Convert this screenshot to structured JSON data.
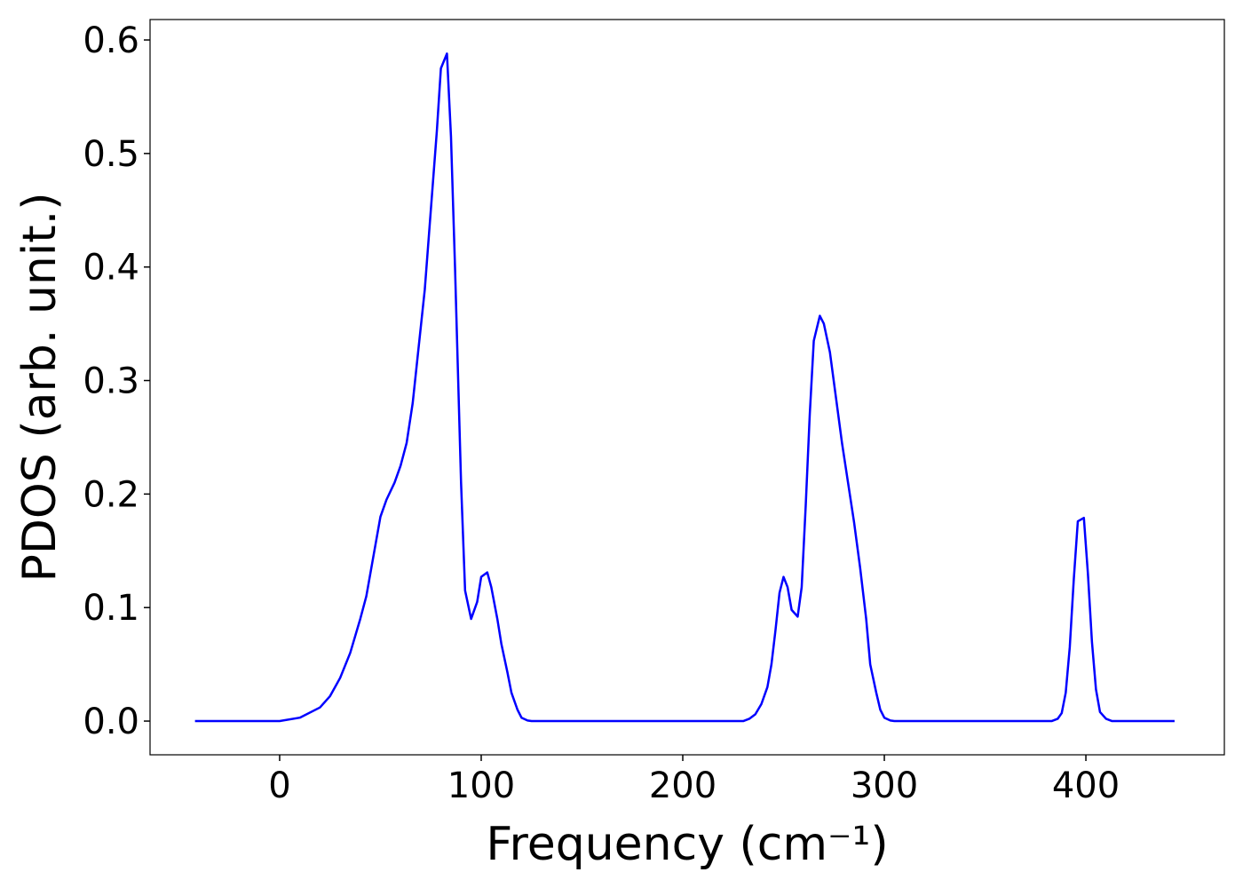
{
  "chart_data": {
    "type": "line",
    "xlabel": "Frequency (cm⁻¹)",
    "ylabel": "PDOS (arb. unit.)",
    "x": [
      -42,
      0,
      10,
      20,
      25,
      30,
      35,
      40,
      43,
      46,
      50,
      53,
      57,
      60,
      63,
      66,
      69,
      72,
      75,
      78,
      80,
      83,
      85,
      87,
      90,
      92,
      95,
      98,
      100,
      103,
      105,
      108,
      110,
      113,
      115,
      118,
      120,
      123,
      125,
      230,
      233,
      236,
      239,
      242,
      244,
      246,
      248,
      250,
      252,
      254,
      257,
      259,
      261,
      263,
      265,
      268,
      270,
      273,
      276,
      279,
      282,
      285,
      288,
      291,
      293,
      296,
      298,
      300,
      303,
      305,
      383,
      386,
      388,
      390,
      392,
      394,
      396,
      399,
      401,
      403,
      405,
      407,
      410,
      413,
      444
    ],
    "series": [
      {
        "color": "#0000ff",
        "values": [
          0,
          0,
          0.003,
          0.012,
          0.022,
          0.038,
          0.06,
          0.09,
          0.11,
          0.14,
          0.18,
          0.195,
          0.21,
          0.225,
          0.245,
          0.28,
          0.33,
          0.38,
          0.45,
          0.52,
          0.575,
          0.588,
          0.515,
          0.4,
          0.21,
          0.115,
          0.09,
          0.105,
          0.127,
          0.131,
          0.118,
          0.09,
          0.068,
          0.043,
          0.025,
          0.01,
          0.003,
          0.0005,
          0,
          0,
          0.002,
          0.006,
          0.015,
          0.03,
          0.05,
          0.08,
          0.113,
          0.127,
          0.118,
          0.098,
          0.092,
          0.118,
          0.19,
          0.27,
          0.335,
          0.357,
          0.35,
          0.325,
          0.285,
          0.245,
          0.21,
          0.175,
          0.135,
          0.09,
          0.05,
          0.025,
          0.01,
          0.003,
          0.0005,
          0,
          0,
          0.002,
          0.007,
          0.025,
          0.065,
          0.125,
          0.176,
          0.179,
          0.13,
          0.07,
          0.028,
          0.008,
          0.002,
          0,
          0
        ]
      }
    ],
    "xlim": [
      -64.3,
      468.7
    ],
    "xticks": [
      0,
      100,
      200,
      300,
      400
    ],
    "ylim": [
      -0.0297,
      0.618
    ],
    "yticks": [
      {
        "value": 0,
        "label": "0.0"
      },
      0.1,
      0.2,
      0.3,
      0.4,
      0.5,
      0.6
    ],
    "grid": false
  }
}
